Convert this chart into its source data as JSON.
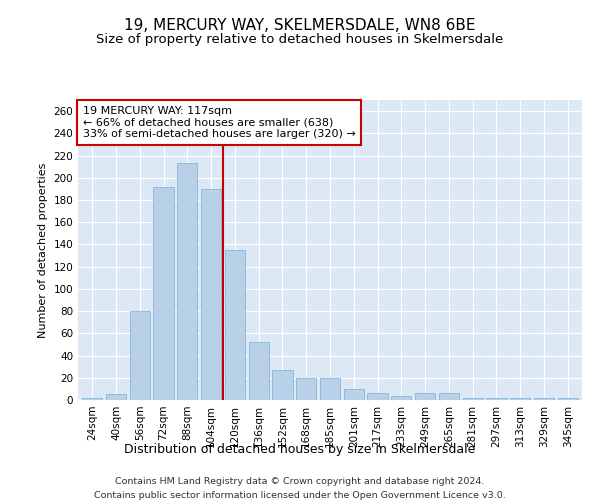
{
  "title": "19, MERCURY WAY, SKELMERSDALE, WN8 6BE",
  "subtitle": "Size of property relative to detached houses in Skelmersdale",
  "xlabel": "Distribution of detached houses by size in Skelmersdale",
  "ylabel": "Number of detached properties",
  "categories": [
    "24sqm",
    "40sqm",
    "56sqm",
    "72sqm",
    "88sqm",
    "104sqm",
    "120sqm",
    "136sqm",
    "152sqm",
    "168sqm",
    "185sqm",
    "201sqm",
    "217sqm",
    "233sqm",
    "249sqm",
    "265sqm",
    "281sqm",
    "297sqm",
    "313sqm",
    "329sqm",
    "345sqm"
  ],
  "values": [
    2,
    5,
    80,
    192,
    213,
    190,
    135,
    52,
    27,
    20,
    20,
    10,
    6,
    4,
    6,
    6,
    2,
    2,
    2,
    2,
    2
  ],
  "bar_color": "#b8d0e8",
  "bar_edge_color": "#7aafd4",
  "property_line_color": "#cc0000",
  "annotation_text": "19 MERCURY WAY: 117sqm\n← 66% of detached houses are smaller (638)\n33% of semi-detached houses are larger (320) →",
  "annotation_box_color": "#ffffff",
  "annotation_box_edge": "#cc0000",
  "ylim": [
    0,
    270
  ],
  "yticks": [
    0,
    20,
    40,
    60,
    80,
    100,
    120,
    140,
    160,
    180,
    200,
    220,
    240,
    260
  ],
  "background_color": "#dce9f5",
  "footer1": "Contains HM Land Registry data © Crown copyright and database right 2024.",
  "footer2": "Contains public sector information licensed under the Open Government Licence v3.0.",
  "title_fontsize": 11,
  "subtitle_fontsize": 9.5,
  "xlabel_fontsize": 9,
  "ylabel_fontsize": 8,
  "tick_fontsize": 7.5,
  "footer_fontsize": 6.8,
  "annotation_fontsize": 8
}
